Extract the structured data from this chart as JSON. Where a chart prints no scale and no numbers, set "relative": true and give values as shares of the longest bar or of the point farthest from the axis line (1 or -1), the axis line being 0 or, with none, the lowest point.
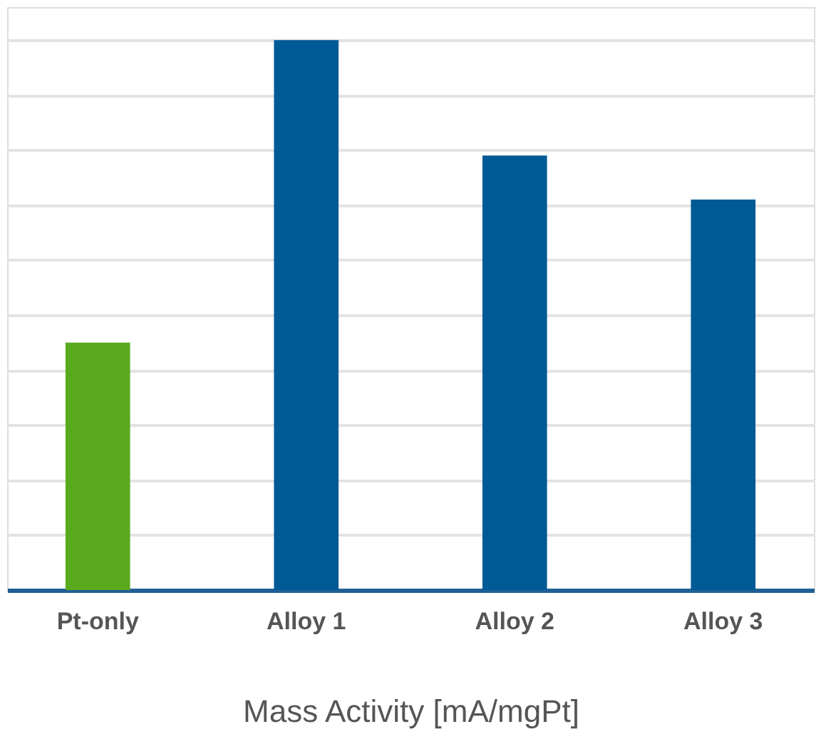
{
  "chart_data": {
    "type": "bar",
    "xlabel": "Mass Activity [mA/mgPt]",
    "categories": [
      "Pt-only",
      "Alloy 1",
      "Alloy 2",
      "Alloy 3"
    ],
    "values": [
      0.45,
      1,
      0.79,
      0.71
    ],
    "colors": [
      "#5aaa1e",
      "#005a96",
      "#005a96",
      "#005a96"
    ],
    "relative": true,
    "grid": "y"
  }
}
